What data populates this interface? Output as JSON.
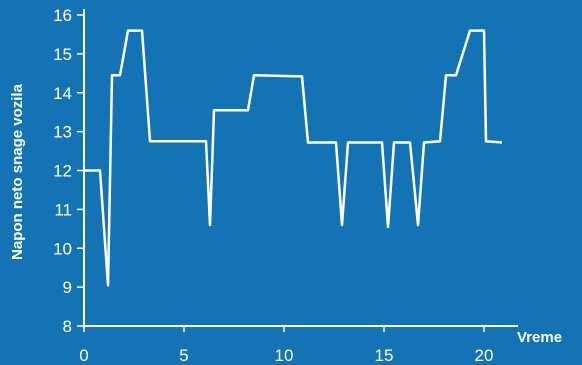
{
  "chart_data": {
    "type": "line",
    "title": "",
    "xlabel": "Vreme",
    "ylabel": "Napon neto snage vozila",
    "xlim": [
      0,
      21
    ],
    "ylim": [
      8,
      16
    ],
    "xticks": [
      0,
      5,
      10,
      15,
      20
    ],
    "yticks": [
      8,
      9,
      10,
      11,
      12,
      13,
      14,
      15,
      16
    ],
    "grid": false,
    "series": [
      {
        "x": [
          0,
          0.8,
          1.2,
          1.4,
          1.8,
          2.2,
          2.9,
          3.3,
          6.1,
          6.3,
          6.5,
          8.2,
          8.5,
          10.9,
          11.2,
          12.6,
          12.9,
          13.2,
          14.9,
          15.2,
          15.5,
          16.3,
          16.7,
          17.0,
          17.8,
          18.1,
          18.6,
          19.3,
          20.0,
          20.1,
          20.9
        ],
        "y": [
          12.0,
          12.0,
          9.05,
          14.45,
          14.45,
          15.6,
          15.6,
          12.75,
          12.75,
          10.6,
          13.55,
          13.55,
          14.45,
          14.42,
          12.72,
          12.72,
          10.6,
          12.72,
          12.72,
          10.55,
          12.72,
          12.72,
          10.6,
          12.72,
          12.75,
          14.45,
          14.45,
          15.6,
          15.6,
          12.75,
          12.72
        ]
      }
    ],
    "colors": {
      "background": "#1373b5",
      "line": "#ffffff",
      "axis": "#ffffff"
    }
  }
}
